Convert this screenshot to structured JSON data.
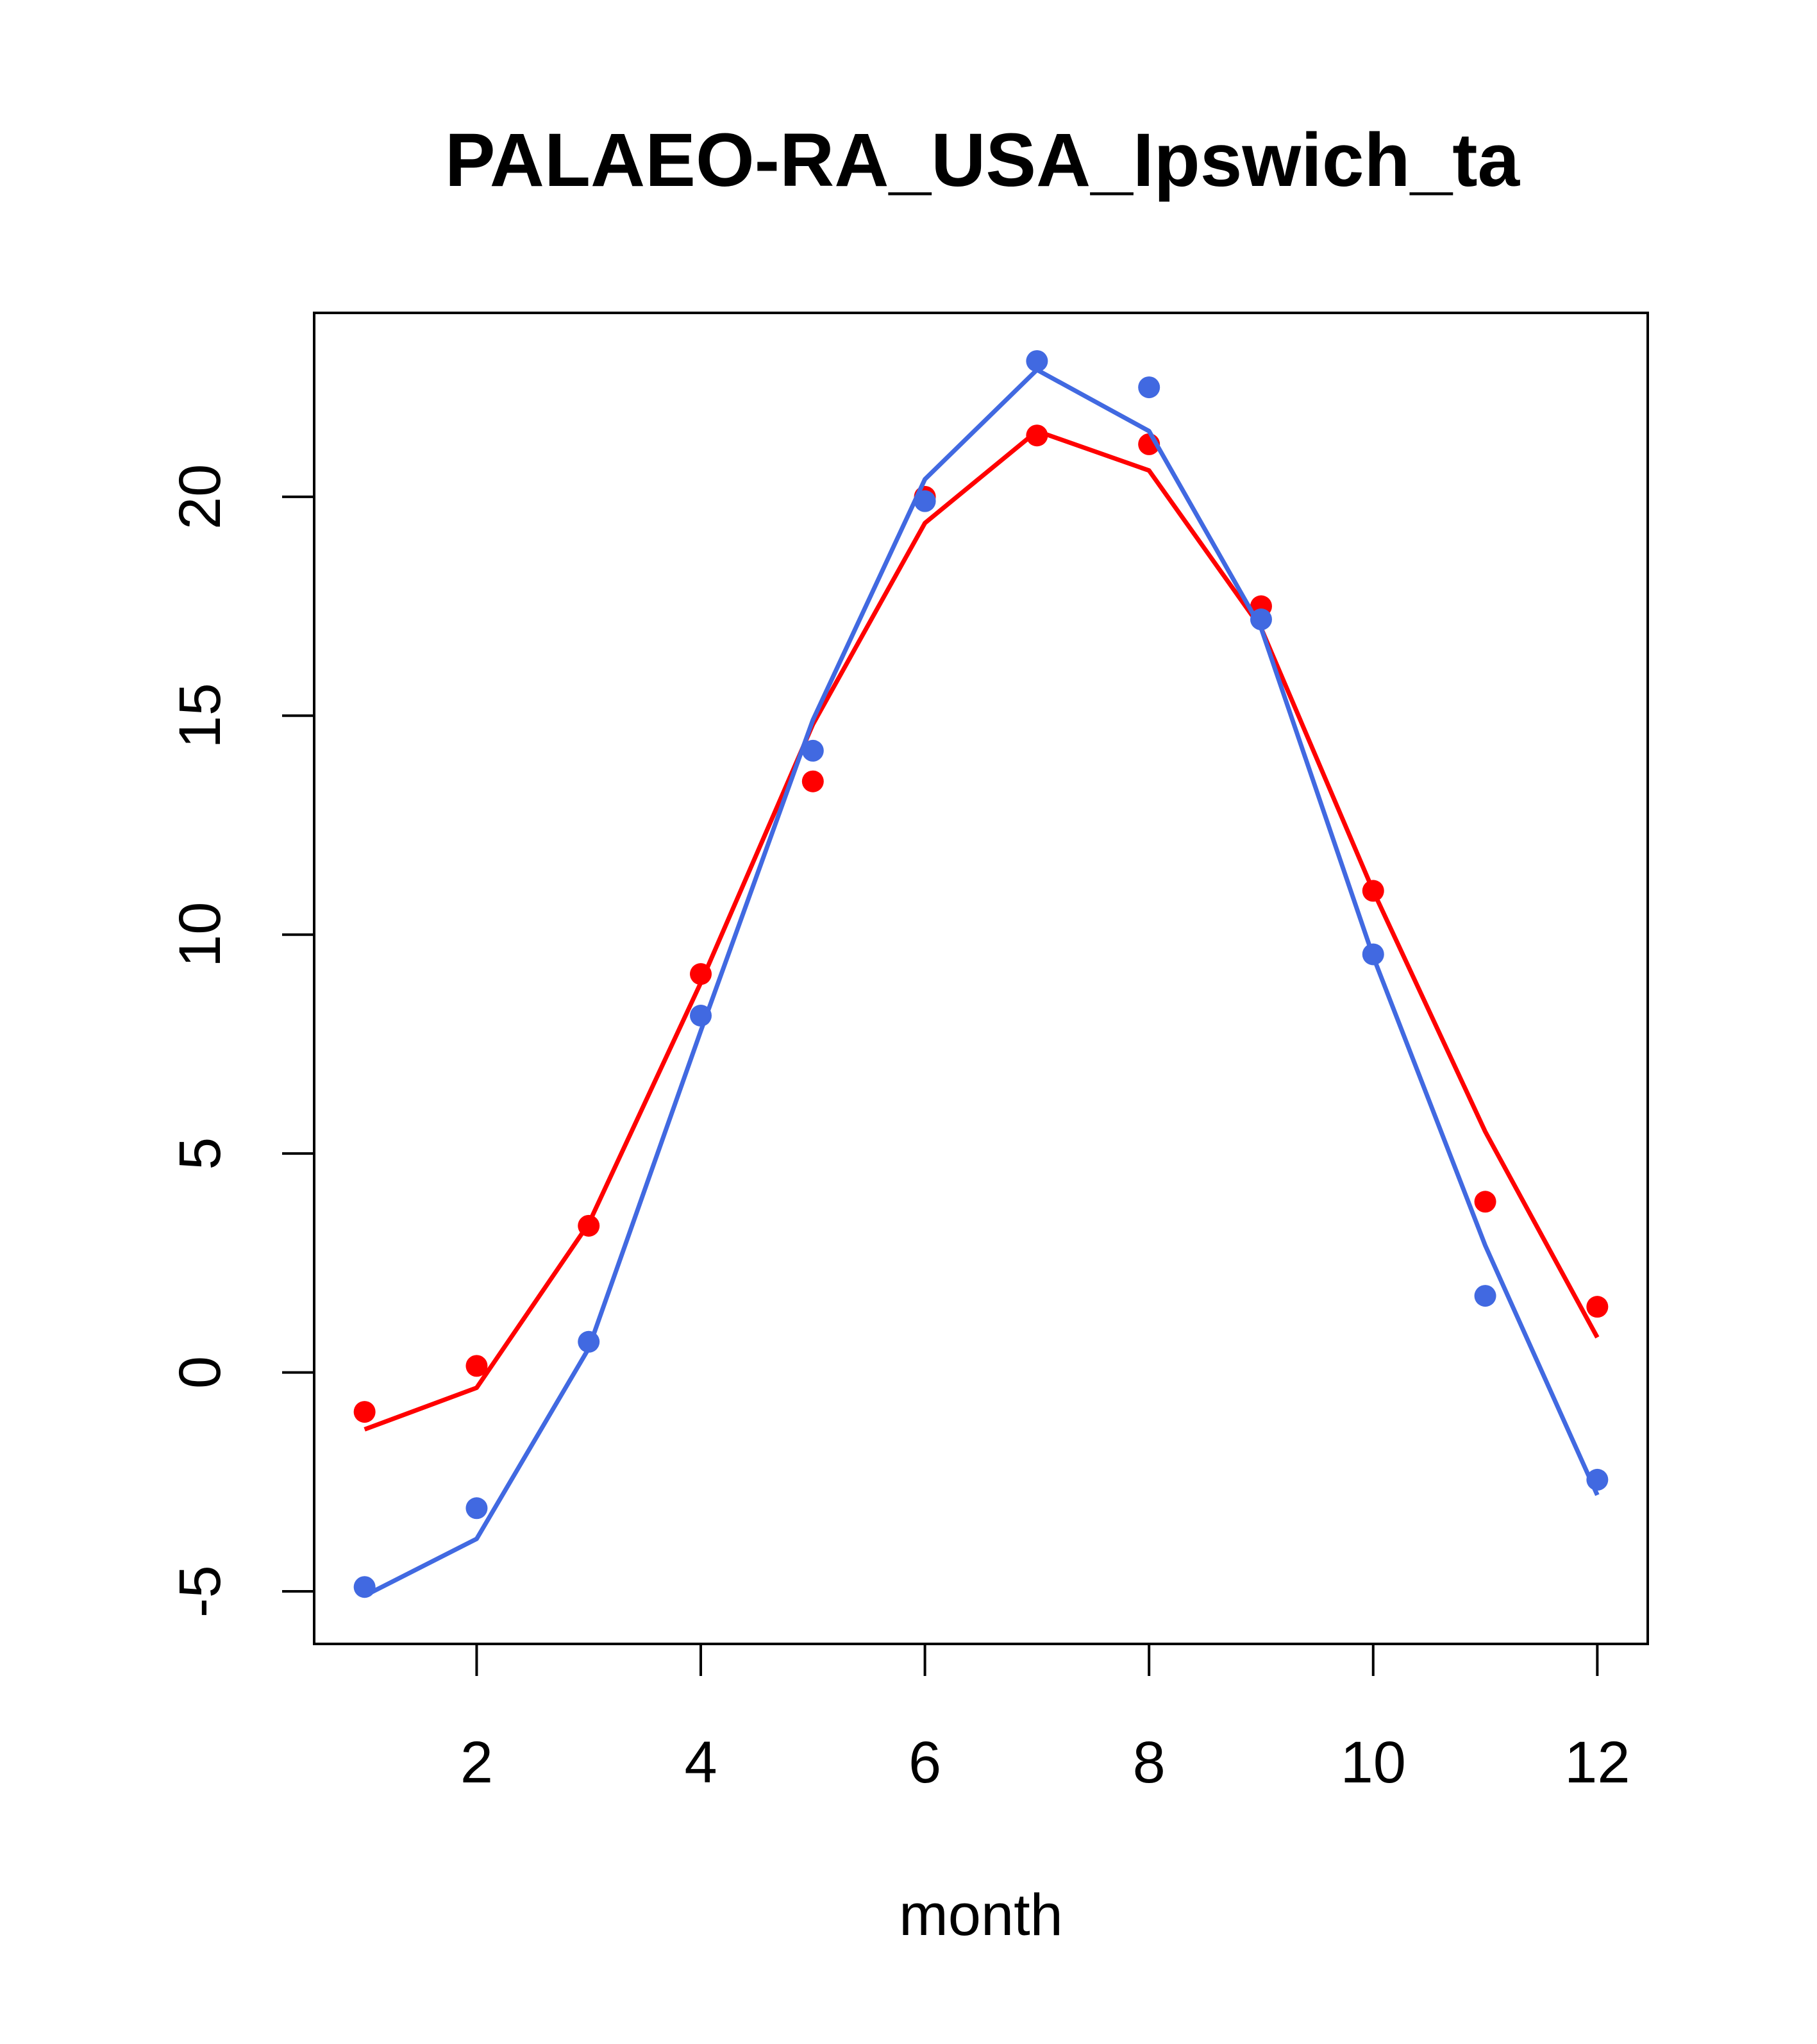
{
  "chart_data": {
    "type": "line",
    "title": "PALAEO-RA_USA_Ipswich_ta",
    "xlabel": "month",
    "ylabel": "",
    "xlim": [
      0.55,
      12.45
    ],
    "ylim": [
      -6.2,
      24.2
    ],
    "xticks": [
      2,
      4,
      6,
      8,
      10,
      12
    ],
    "yticks": [
      -5,
      0,
      5,
      10,
      15,
      20
    ],
    "grid": false,
    "legend": "none",
    "x": [
      1,
      2,
      3,
      4,
      5,
      6,
      7,
      8,
      9,
      10,
      11,
      12
    ],
    "series": [
      {
        "color": "#ff0000",
        "points": [
          -0.9,
          0.15,
          3.35,
          9.1,
          13.5,
          20.0,
          21.4,
          21.2,
          17.5,
          11.0,
          3.9,
          1.5
        ],
        "line": [
          -1.3,
          -0.35,
          3.4,
          8.9,
          14.8,
          19.4,
          21.5,
          20.6,
          17.0,
          11.0,
          5.5,
          0.8
        ]
      },
      {
        "color": "#4169e1",
        "points": [
          -4.9,
          -3.1,
          0.7,
          8.15,
          14.2,
          19.9,
          23.1,
          22.5,
          17.2,
          9.55,
          1.75,
          -2.45
        ],
        "line": [
          -5.1,
          -3.8,
          0.55,
          7.8,
          14.9,
          20.4,
          22.9,
          21.5,
          17.0,
          9.5,
          2.9,
          -2.8
        ]
      }
    ]
  }
}
